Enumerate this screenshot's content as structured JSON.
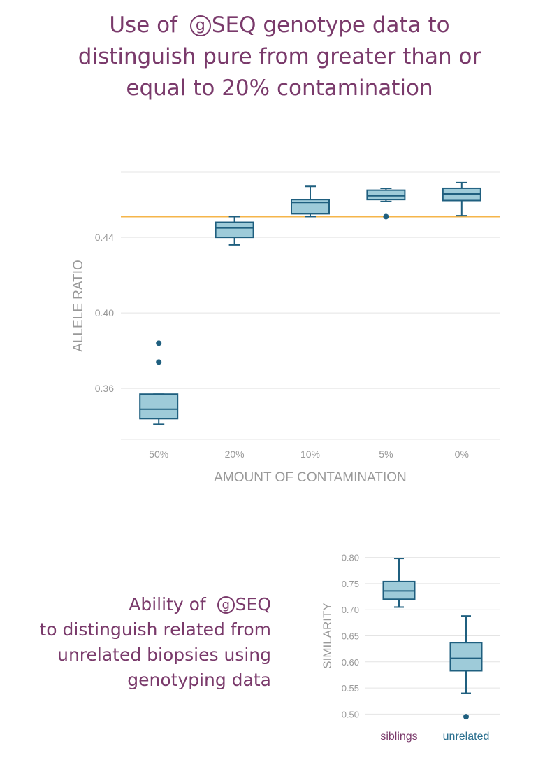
{
  "title": {
    "line1_pre": "Use of",
    "logo_letter": "g",
    "line1_post": "SEQ genotype data to",
    "line2": "distinguish pure from greater than or",
    "line3": "equal to 20% contamination"
  },
  "caption": {
    "line1_pre": "Ability of",
    "logo_letter": "g",
    "line1_post": "SEQ",
    "line2": "to distinguish related from",
    "line3": "unrelated biopsies using",
    "line4": "genotyping data"
  },
  "colors": {
    "box_fill": "#9ecbd9",
    "box_stroke": "#1f5f7f",
    "reference_line": "#f5b54a",
    "grid": "#e4e4e4",
    "axis_text": "#999999",
    "title_purple": "#7a3a6b"
  },
  "chart_data": [
    {
      "type": "box",
      "title": "",
      "xlabel": "AMOUNT OF CONTAMINATION",
      "ylabel": "ALLELE RATIO",
      "ylim": [
        0.333,
        0.4745
      ],
      "yticks": [
        0.36,
        0.4,
        0.44
      ],
      "ytick_labels": [
        "0.36",
        "0.40",
        "0.44"
      ],
      "reference_line": 0.451,
      "grid": true,
      "categories": [
        "50%",
        "20%",
        "10%",
        "5%",
        "0%"
      ],
      "boxes": [
        {
          "min": 0.341,
          "q1": 0.344,
          "median": 0.349,
          "q3": 0.357,
          "max": 0.357,
          "outliers": [
            0.384,
            0.374
          ]
        },
        {
          "min": 0.436,
          "q1": 0.44,
          "median": 0.445,
          "q3": 0.448,
          "max": 0.451,
          "outliers": []
        },
        {
          "min": 0.451,
          "q1": 0.4525,
          "median": 0.4585,
          "q3": 0.46,
          "max": 0.467,
          "outliers": []
        },
        {
          "min": 0.459,
          "q1": 0.46,
          "median": 0.462,
          "q3": 0.465,
          "max": 0.466,
          "outliers": [
            0.451
          ]
        },
        {
          "min": 0.4515,
          "q1": 0.4595,
          "median": 0.463,
          "q3": 0.466,
          "max": 0.469,
          "outliers": []
        }
      ]
    },
    {
      "type": "box",
      "title": "",
      "xlabel": "",
      "ylabel": "SIMILARITY",
      "ylim": [
        0.4925,
        0.8075
      ],
      "yticks": [
        0.5,
        0.55,
        0.6,
        0.65,
        0.7,
        0.75,
        0.8
      ],
      "ytick_labels": [
        "0.50",
        "0.55",
        "0.60",
        "0.65",
        "0.70",
        "0.75",
        "0.80"
      ],
      "grid": true,
      "categories": [
        "siblings",
        "unrelated"
      ],
      "category_colors": [
        "#7a3a6b",
        "#2a6f8f"
      ],
      "boxes": [
        {
          "min": 0.705,
          "q1": 0.72,
          "median": 0.736,
          "q3": 0.754,
          "max": 0.798,
          "outliers": []
        },
        {
          "min": 0.54,
          "q1": 0.583,
          "median": 0.607,
          "q3": 0.637,
          "max": 0.688,
          "outliers": [
            0.495
          ]
        }
      ]
    }
  ]
}
